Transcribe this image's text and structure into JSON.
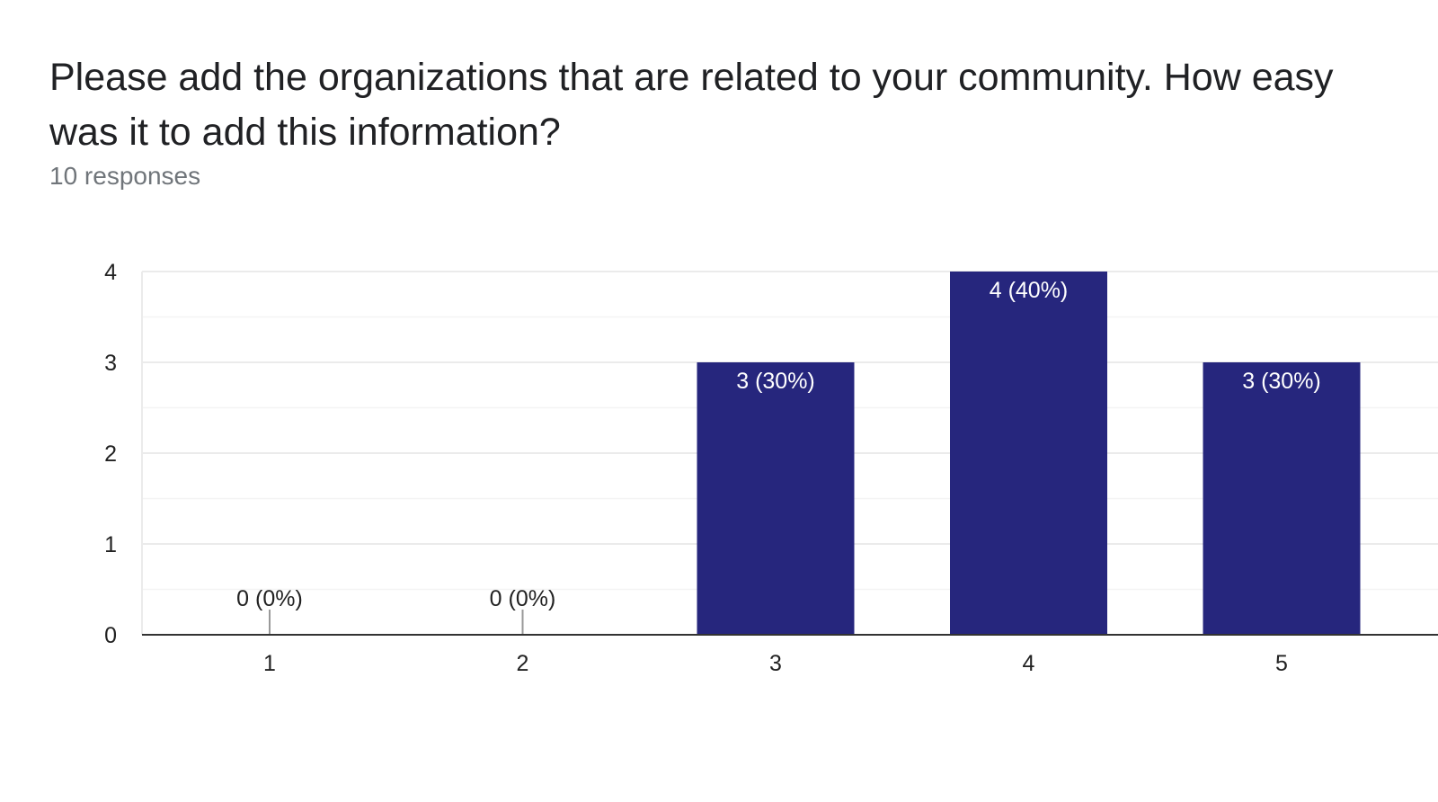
{
  "question": {
    "title": "Please add the organizations that are related to your community. How easy was it to add this information?",
    "responses": "10 responses"
  },
  "colors": {
    "bar": "#26267d",
    "label_on_bar": "#ffffff",
    "label_off_bar": "#222222",
    "gridline": "#ebebeb",
    "minor_gridline": "#f4f4f4",
    "axis": "#333333"
  },
  "chart_data": {
    "type": "bar",
    "categories": [
      "1",
      "2",
      "3",
      "4",
      "5"
    ],
    "values": [
      0,
      0,
      3,
      4,
      3
    ],
    "data_labels": [
      "0 (0%)",
      "0 (0%)",
      "3 (30%)",
      "4 (40%)",
      "3 (30%)"
    ],
    "y_ticks": [
      "0",
      "1",
      "2",
      "3",
      "4"
    ],
    "ylim": [
      0,
      4
    ],
    "grid": true,
    "legend": "none"
  }
}
